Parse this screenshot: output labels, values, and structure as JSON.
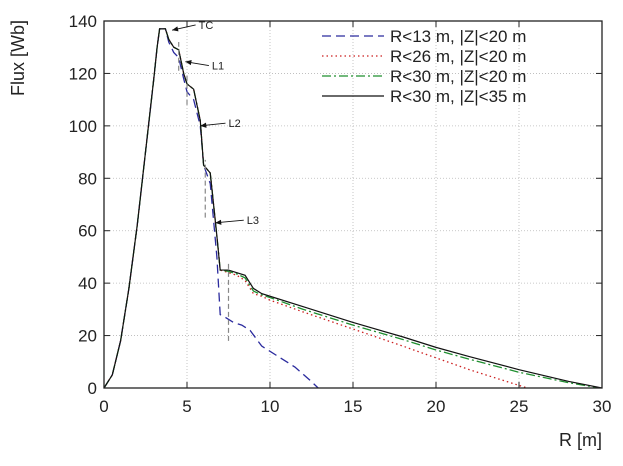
{
  "chart_data": {
    "type": "line",
    "xlabel": "R [m]",
    "ylabel": "Flux [Wb]",
    "xlim": [
      0,
      30
    ],
    "ylim": [
      0,
      140
    ],
    "xticks": [
      0,
      5,
      10,
      15,
      20,
      25,
      30
    ],
    "yticks": [
      0,
      20,
      40,
      60,
      80,
      100,
      120,
      140
    ],
    "grid": true,
    "legend_position": "top-right",
    "series": [
      {
        "name": "R<13 m, |Z|<20 m",
        "color": "#2b2b9e",
        "dash": "dashed",
        "points": [
          [
            0,
            0
          ],
          [
            0.5,
            5
          ],
          [
            1,
            18
          ],
          [
            1.5,
            38
          ],
          [
            2,
            62
          ],
          [
            2.5,
            90
          ],
          [
            3,
            118
          ],
          [
            3.2,
            130
          ],
          [
            3.35,
            137
          ],
          [
            3.7,
            137
          ],
          [
            3.9,
            132
          ],
          [
            4.2,
            128
          ],
          [
            4.5,
            126
          ],
          [
            4.8,
            118
          ],
          [
            5.0,
            113
          ],
          [
            5.4,
            110
          ],
          [
            5.8,
            100
          ],
          [
            6.0,
            85
          ],
          [
            6.4,
            78
          ],
          [
            6.8,
            50
          ],
          [
            7.0,
            28
          ],
          [
            7.3,
            27
          ],
          [
            7.8,
            25
          ],
          [
            8.3,
            24
          ],
          [
            8.8,
            22
          ],
          [
            9.5,
            16
          ],
          [
            10.5,
            12
          ],
          [
            11.5,
            8
          ],
          [
            12.4,
            3
          ],
          [
            12.9,
            0
          ]
        ]
      },
      {
        "name": "R<26 m, |Z|<20 m",
        "color": "#cc1f1f",
        "dash": "dotted",
        "points": [
          [
            0,
            0
          ],
          [
            0.5,
            5
          ],
          [
            1,
            18
          ],
          [
            1.5,
            38
          ],
          [
            2,
            62
          ],
          [
            2.5,
            90
          ],
          [
            3,
            118
          ],
          [
            3.2,
            130
          ],
          [
            3.35,
            137
          ],
          [
            3.7,
            137
          ],
          [
            3.9,
            133
          ],
          [
            4.2,
            130
          ],
          [
            4.5,
            129
          ],
          [
            4.8,
            120
          ],
          [
            5.0,
            116
          ],
          [
            5.4,
            114
          ],
          [
            5.8,
            102
          ],
          [
            6.0,
            85
          ],
          [
            6.4,
            82
          ],
          [
            6.8,
            58
          ],
          [
            7.0,
            45
          ],
          [
            7.5,
            44
          ],
          [
            8.0,
            43
          ],
          [
            8.5,
            41
          ],
          [
            9.0,
            36
          ],
          [
            9.5,
            35
          ],
          [
            10,
            33.5
          ],
          [
            12,
            29
          ],
          [
            15,
            22.5
          ],
          [
            18,
            16
          ],
          [
            20,
            11.5
          ],
          [
            22,
            7
          ],
          [
            24,
            3
          ],
          [
            25,
            1
          ],
          [
            25.5,
            0
          ]
        ]
      },
      {
        "name": "R<30 m, |Z|<20 m",
        "color": "#1f8f2f",
        "dash": "dashdot",
        "points": [
          [
            0,
            0
          ],
          [
            0.5,
            5
          ],
          [
            1,
            18
          ],
          [
            1.5,
            38
          ],
          [
            2,
            62
          ],
          [
            2.5,
            90
          ],
          [
            3,
            118
          ],
          [
            3.2,
            130
          ],
          [
            3.35,
            137
          ],
          [
            3.7,
            137
          ],
          [
            3.9,
            133
          ],
          [
            4.2,
            130
          ],
          [
            4.5,
            129
          ],
          [
            4.8,
            120
          ],
          [
            5.0,
            116
          ],
          [
            5.4,
            114
          ],
          [
            5.8,
            102
          ],
          [
            6.0,
            85
          ],
          [
            6.4,
            82
          ],
          [
            6.8,
            58
          ],
          [
            7.0,
            45
          ],
          [
            7.5,
            44.5
          ],
          [
            8.0,
            43.5
          ],
          [
            8.5,
            42
          ],
          [
            9.0,
            37
          ],
          [
            9.5,
            35.5
          ],
          [
            10,
            34.5
          ],
          [
            12,
            30
          ],
          [
            15,
            24
          ],
          [
            18,
            18.5
          ],
          [
            20,
            14.5
          ],
          [
            22,
            11
          ],
          [
            25,
            6
          ],
          [
            28,
            2
          ],
          [
            29.9,
            0
          ]
        ]
      },
      {
        "name": "R<30 m, |Z|<35 m",
        "color": "#111111",
        "dash": "solid",
        "points": [
          [
            0,
            0
          ],
          [
            0.5,
            5
          ],
          [
            1,
            18
          ],
          [
            1.5,
            38
          ],
          [
            2,
            62
          ],
          [
            2.5,
            90
          ],
          [
            3,
            118
          ],
          [
            3.2,
            130
          ],
          [
            3.35,
            137
          ],
          [
            3.7,
            137
          ],
          [
            3.9,
            133
          ],
          [
            4.2,
            130
          ],
          [
            4.5,
            129
          ],
          [
            4.8,
            120
          ],
          [
            5.0,
            116
          ],
          [
            5.4,
            114
          ],
          [
            5.8,
            102
          ],
          [
            6.0,
            85
          ],
          [
            6.4,
            82
          ],
          [
            6.8,
            58
          ],
          [
            7.0,
            45
          ],
          [
            7.5,
            45
          ],
          [
            8.0,
            44
          ],
          [
            8.5,
            43
          ],
          [
            9.0,
            38
          ],
          [
            9.5,
            36
          ],
          [
            10,
            35
          ],
          [
            12,
            31
          ],
          [
            15,
            25
          ],
          [
            18,
            19.5
          ],
          [
            20,
            15.5
          ],
          [
            22,
            12
          ],
          [
            25,
            7
          ],
          [
            28,
            2.5
          ],
          [
            30,
            0
          ]
        ]
      }
    ],
    "annotations": [
      {
        "text": "TC",
        "x": 5.7,
        "y": 138.5,
        "arrow_to": [
          4.1,
          136.5
        ]
      },
      {
        "text": "L1",
        "x": 6.5,
        "y": 123,
        "arrow_to": [
          4.9,
          124.5
        ]
      },
      {
        "text": "L2",
        "x": 7.5,
        "y": 101,
        "arrow_to": [
          5.8,
          100
        ]
      },
      {
        "text": "L3",
        "x": 8.6,
        "y": 64,
        "arrow_to": [
          6.7,
          63
        ]
      }
    ],
    "error_bars": [
      {
        "x": 4.5,
        "y_low": 121,
        "y_high": 132
      },
      {
        "x": 5.0,
        "y_low": 108,
        "y_high": 120
      },
      {
        "x": 6.1,
        "y_low": 65,
        "y_high": 87
      },
      {
        "x": 7.5,
        "y_low": 18,
        "y_high": 48
      }
    ]
  }
}
